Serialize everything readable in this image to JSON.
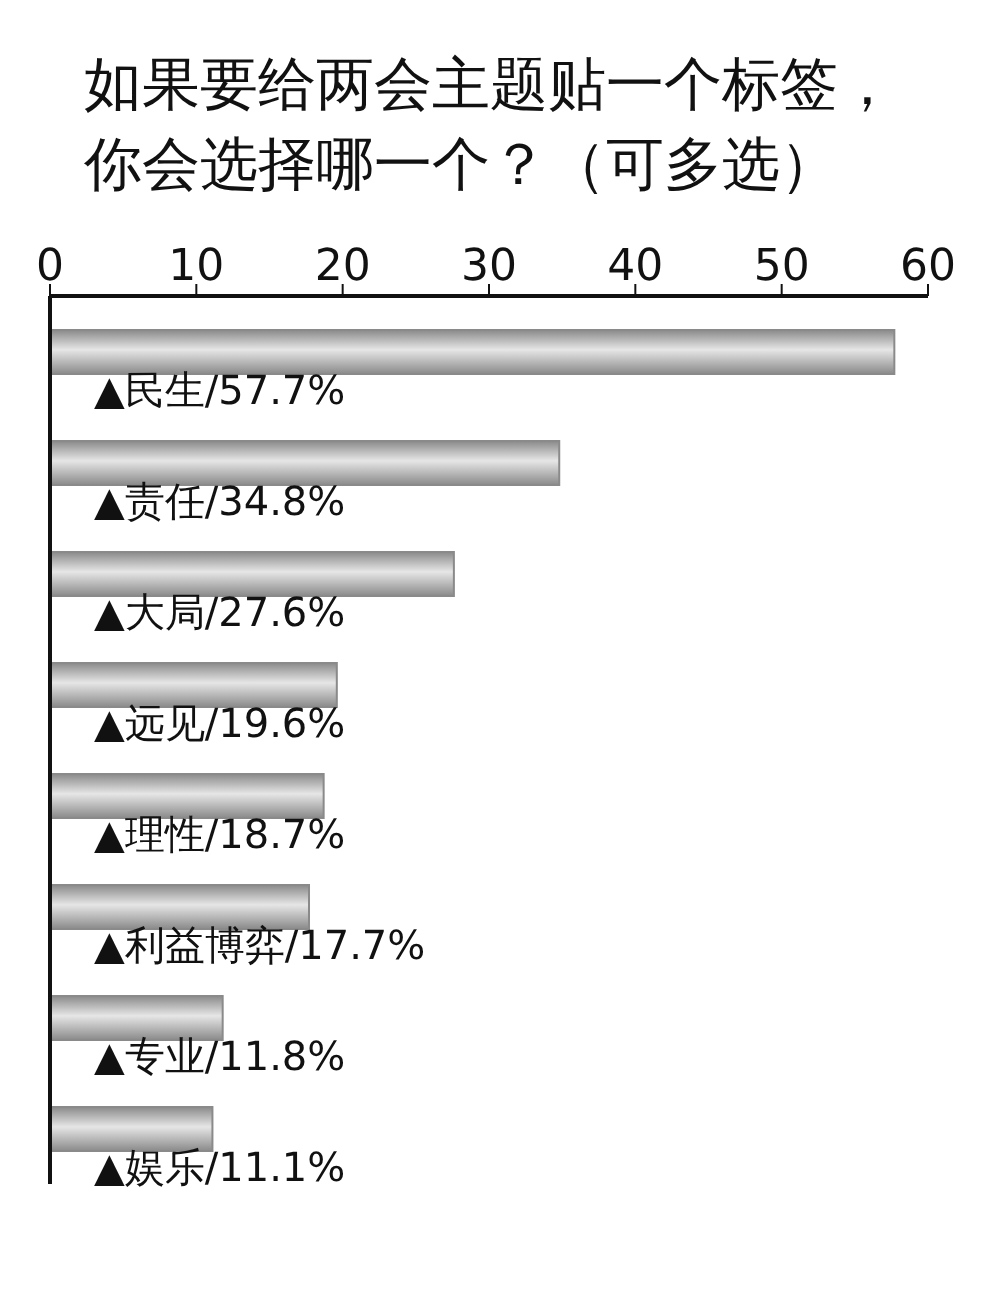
{
  "chart_data": {
    "type": "bar",
    "orientation": "horizontal",
    "title": "如果要给两会主题贴一个标签，你会选择哪一个？（可多选）",
    "categories": [
      "▲民生/57.7%",
      "▲责任/34.8%",
      "▲大局/27.6%",
      "▲远见/19.6%",
      "▲理性/18.7%",
      "▲利益博弈/17.7%",
      "▲专业/11.8%",
      "▲娱乐/11.1%"
    ],
    "values": [
      57.7,
      34.8,
      27.6,
      19.6,
      18.7,
      17.7,
      11.8,
      11.1
    ],
    "color": "#8a8a8a",
    "xlim": [
      0,
      60
    ],
    "xticks": [
      0,
      10,
      20,
      30,
      40,
      50,
      60
    ],
    "grid": false,
    "legend": false
  }
}
